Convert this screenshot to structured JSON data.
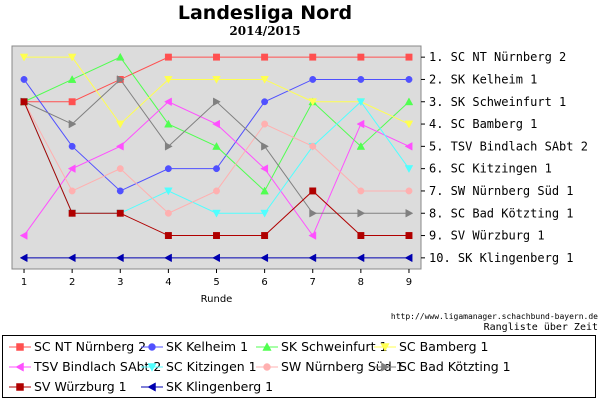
{
  "header": {
    "title": "Landesliga Nord",
    "subtitle": "2014/2015"
  },
  "footer": {
    "url": "http://www.ligamanager.schachbund-bayern.de",
    "caption": "Rangliste über Zeit"
  },
  "chart_data": {
    "type": "line",
    "title": "Landesliga Nord",
    "subtitle": "2014/2015",
    "xlabel": "Runde",
    "ylabel": "",
    "x": [
      1,
      2,
      3,
      4,
      5,
      6,
      7,
      8,
      9
    ],
    "xlim": [
      0.75,
      9.25
    ],
    "ylim": [
      0.5,
      10.5
    ],
    "y_inverted": true,
    "grid": false,
    "legend_position": "bottom",
    "rank_labels": [
      "1.  SC NT Nürnberg 2",
      "2.  SK Kelheim 1",
      "3.  SK Schweinfurt 1",
      "4.  SC Bamberg 1",
      "5.  TSV Bindlach SAbt 2",
      "6.  SC Kitzingen 1",
      "7.  SW Nürnberg Süd 1",
      "8.  SC Bad Kötzting 1",
      "9.  SV Würzburg 1",
      "10.  SK Klingenberg 1"
    ],
    "series": [
      {
        "name": "SC NT Nürnberg 2",
        "color": "#ff5050",
        "marker": "square",
        "values": [
          3,
          3,
          2,
          1,
          1,
          1,
          1,
          1,
          1
        ]
      },
      {
        "name": "SK Kelheim 1",
        "color": "#5050ff",
        "marker": "circle",
        "values": [
          2,
          5,
          7,
          6,
          6,
          3,
          2,
          2,
          2
        ]
      },
      {
        "name": "SK Schweinfurt 1",
        "color": "#50ff50",
        "marker": "triangle-up",
        "values": [
          3,
          2,
          1,
          4,
          5,
          7,
          3,
          5,
          3
        ]
      },
      {
        "name": "SC Bamberg 1",
        "color": "#ffff50",
        "marker": "triangle-down",
        "values": [
          1,
          1,
          4,
          2,
          2,
          2,
          3,
          3,
          4
        ]
      },
      {
        "name": "TSV Bindlach SAbt 2",
        "color": "#ff50ff",
        "marker": "triangle-left",
        "values": [
          9,
          6,
          5,
          3,
          4,
          6,
          9,
          4,
          5
        ]
      },
      {
        "name": "SC Kitzingen 1",
        "color": "#50ffff",
        "marker": "triangle-down",
        "values": [
          3,
          8,
          8,
          7,
          8,
          8,
          5,
          3,
          6
        ]
      },
      {
        "name": "SW Nürnberg Süd 1",
        "color": "#ffb0b0",
        "marker": "circle",
        "values": [
          3,
          7,
          6,
          8,
          7,
          4,
          5,
          7,
          7
        ]
      },
      {
        "name": "SC Bad Kötzting 1",
        "color": "#808080",
        "marker": "triangle-right",
        "values": [
          3,
          4,
          2,
          5,
          3,
          5,
          8,
          8,
          8
        ]
      },
      {
        "name": "SV Würzburg 1",
        "color": "#b00000",
        "marker": "square",
        "values": [
          3,
          8,
          8,
          9,
          9,
          9,
          7,
          9,
          9
        ]
      },
      {
        "name": "SK Klingenberg 1",
        "color": "#0000b0",
        "marker": "triangle-left",
        "values": [
          10,
          10,
          10,
          10,
          10,
          10,
          10,
          10,
          10
        ]
      }
    ]
  }
}
